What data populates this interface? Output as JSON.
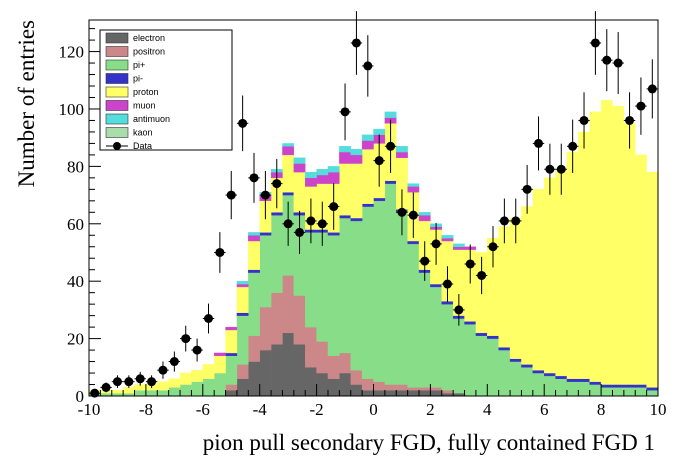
{
  "chart_data": {
    "type": "bar",
    "title": "",
    "xlabel": "pion pull secondary FGD, fully contained FGD 1",
    "ylabel": "Number of entries",
    "xlim": [
      -10,
      10
    ],
    "ylim": [
      0,
      131
    ],
    "xticks": [
      "-10",
      "-8",
      "-6",
      "-4",
      "-2",
      "0",
      "2",
      "4",
      "6",
      "8",
      "10"
    ],
    "yticks": [
      "0",
      "20",
      "40",
      "60",
      "80",
      "100",
      "120"
    ],
    "legend_position": "top-left",
    "bin_edges_start": -10,
    "bin_width": 0.4,
    "series": [
      {
        "name": "electron",
        "color": "#666666",
        "values": [
          0,
          0,
          0,
          0,
          0,
          0,
          0,
          0,
          0,
          0,
          0,
          0,
          2,
          6,
          12,
          16,
          18,
          22,
          18,
          10,
          8,
          6,
          8,
          4,
          2,
          2,
          2,
          2,
          2,
          2,
          2,
          1,
          1,
          0,
          0,
          0,
          0,
          0,
          0,
          0,
          0,
          0,
          0,
          0,
          0,
          0,
          0,
          0,
          0,
          0
        ]
      },
      {
        "name": "positron",
        "color": "#cc8888",
        "values": [
          0,
          0,
          0,
          0,
          0,
          0,
          0,
          0,
          0,
          0,
          0,
          0,
          2,
          5,
          9,
          15,
          18,
          20,
          17,
          14,
          11,
          8,
          7,
          5,
          4,
          3,
          2,
          2,
          1,
          1,
          1,
          1,
          0,
          0,
          0,
          0,
          0,
          0,
          0,
          0,
          0,
          0,
          0,
          0,
          0,
          0,
          0,
          0,
          0,
          0
        ]
      },
      {
        "name": "pi+",
        "color": "#88dd88",
        "values": [
          1,
          1,
          1,
          1,
          2,
          2,
          2,
          3,
          4,
          5,
          6,
          8,
          10,
          17,
          22,
          25,
          27,
          28,
          28,
          33,
          38,
          42,
          47,
          52,
          60,
          63,
          70,
          60,
          50,
          40,
          35,
          30,
          26,
          25,
          21,
          20,
          16,
          12,
          10,
          8,
          7,
          6,
          5,
          5,
          4,
          3,
          3,
          3,
          3,
          2
        ]
      },
      {
        "name": "pi-",
        "color": "#3333cc",
        "values": [
          0,
          0,
          0,
          0,
          0,
          0,
          0,
          0,
          0,
          0,
          0,
          0,
          1,
          1,
          1,
          1,
          1,
          1,
          1,
          1,
          1,
          1,
          1,
          1,
          1,
          1,
          1,
          1,
          1,
          1,
          1,
          1,
          1,
          1,
          1,
          1,
          1,
          1,
          1,
          1,
          1,
          1,
          1,
          1,
          1,
          1,
          1,
          1,
          1,
          1
        ]
      },
      {
        "name": "proton",
        "color": "#ffff66",
        "values": [
          1,
          1,
          1,
          2,
          2,
          2,
          3,
          3,
          4,
          4,
          5,
          6,
          8,
          9,
          10,
          11,
          12,
          13,
          14,
          15,
          16,
          17,
          18,
          19,
          19,
          19,
          20,
          18,
          17,
          17,
          19,
          21,
          23,
          25,
          28,
          34,
          42,
          49,
          55,
          63,
          68,
          72,
          79,
          86,
          94,
          99,
          97,
          91,
          80,
          75
        ]
      },
      {
        "name": "muon",
        "color": "#cc44cc",
        "values": [
          0,
          0,
          0,
          0,
          0,
          0,
          0,
          0,
          0,
          0,
          0,
          1,
          1,
          1,
          2,
          2,
          2,
          3,
          3,
          3,
          3,
          4,
          4,
          3,
          3,
          3,
          2,
          2,
          2,
          2,
          1,
          1,
          1,
          1,
          0,
          0,
          0,
          0,
          0,
          0,
          0,
          0,
          0,
          0,
          0,
          0,
          0,
          0,
          0,
          0
        ]
      },
      {
        "name": "antimuon",
        "color": "#55dddd",
        "values": [
          0,
          0,
          0,
          0,
          0,
          0,
          0,
          0,
          0,
          0,
          0,
          0,
          0,
          1,
          1,
          1,
          1,
          1,
          2,
          2,
          2,
          2,
          2,
          2,
          2,
          2,
          2,
          2,
          1,
          1,
          1,
          1,
          1,
          0,
          0,
          0,
          0,
          0,
          0,
          0,
          0,
          0,
          0,
          0,
          0,
          0,
          0,
          0,
          0,
          0
        ]
      },
      {
        "name": "kaon",
        "color": "#aaddaa",
        "values": [
          0,
          0,
          0,
          0,
          0,
          0,
          0,
          0,
          0,
          0,
          0,
          0,
          0,
          0,
          0,
          0,
          0,
          0,
          0,
          0,
          0,
          0,
          0,
          0,
          0,
          0,
          0,
          0,
          0,
          0,
          0,
          0,
          0,
          0,
          0,
          0,
          0,
          0,
          0,
          0,
          0,
          0,
          0,
          0,
          0,
          0,
          0,
          0,
          0,
          0
        ]
      }
    ],
    "data": {
      "name": "Data",
      "x": [
        -9.8,
        -9.4,
        -9.0,
        -8.6,
        -8.2,
        -7.8,
        -7.4,
        -7.0,
        -6.6,
        -6.2,
        -5.8,
        -5.4,
        -5.0,
        -4.6,
        -4.2,
        -3.8,
        -3.4,
        -3.0,
        -2.6,
        -2.2,
        -1.8,
        -1.4,
        -1.0,
        -0.6,
        -0.2,
        0.2,
        0.6,
        1.0,
        1.4,
        1.8,
        2.2,
        2.6,
        3.0,
        3.4,
        3.8,
        4.2,
        4.6,
        5.0,
        5.4,
        5.8,
        6.2,
        6.6,
        7.0,
        7.4,
        7.8,
        8.2,
        8.6,
        9.0,
        9.4,
        9.8
      ],
      "y": [
        1,
        3,
        5,
        5,
        6,
        5,
        9,
        12,
        20,
        16,
        27,
        50,
        70,
        95,
        76,
        70,
        74,
        60,
        57,
        61,
        60,
        66,
        99,
        123,
        115,
        82,
        87,
        64,
        63,
        47,
        53,
        39,
        30,
        46,
        42,
        52,
        61,
        61,
        72,
        88,
        79,
        79,
        87,
        96,
        123,
        117,
        116,
        96,
        101,
        107
      ],
      "yerr": [
        1,
        1.7,
        2.2,
        2.2,
        2.4,
        2.2,
        3,
        3.5,
        4.5,
        4,
        5.2,
        7.1,
        8.4,
        9.7,
        8.7,
        8.4,
        8.6,
        7.7,
        7.5,
        7.8,
        7.7,
        8.1,
        9.9,
        11.1,
        10.7,
        9.1,
        9.3,
        8,
        7.9,
        6.9,
        7.3,
        6.2,
        5.5,
        6.8,
        6.5,
        7.2,
        7.8,
        7.8,
        8.5,
        9.4,
        8.9,
        8.9,
        9.3,
        9.8,
        11.1,
        10.8,
        10.8,
        9.8,
        10,
        10.3
      ]
    }
  }
}
